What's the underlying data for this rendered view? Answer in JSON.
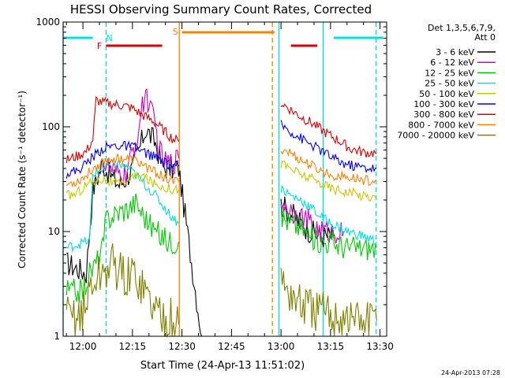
{
  "chart_data": {
    "type": "line",
    "title": "HESSI Observing Summary Count Rates, Corrected",
    "xlabel": "Start Time (24-Apr-13 11:51:02)",
    "ylabel": "Corrected Count Rate (s⁻¹ detector⁻¹)",
    "xlim_minutes": [
      -6,
      92
    ],
    "ylim": [
      1,
      1000
    ],
    "y_scale": "log",
    "x_ticks": [
      {
        "t": 0,
        "label": "12:00"
      },
      {
        "t": 15,
        "label": "12:15"
      },
      {
        "t": 30,
        "label": "12:30"
      },
      {
        "t": 45,
        "label": "12:45"
      },
      {
        "t": 60,
        "label": "13:00"
      },
      {
        "t": 75,
        "label": "13:15"
      },
      {
        "t": 90,
        "label": "13:30"
      }
    ],
    "y_ticks": [
      {
        "v": 1,
        "label": "1"
      },
      {
        "v": 10,
        "label": "10"
      },
      {
        "v": 100,
        "label": "100"
      },
      {
        "v": 1000,
        "label": "1000"
      }
    ],
    "legend_header": [
      "Det 1,3,5,6,7,9,",
      "Att 0"
    ],
    "legend_placement": "right",
    "series": [
      {
        "name": "3 - 6 keV",
        "color": "#000000",
        "points": [
          [
            -5,
            5
          ],
          [
            1,
            4
          ],
          [
            3,
            25
          ],
          [
            6,
            45
          ],
          [
            8,
            35
          ],
          [
            11,
            28
          ],
          [
            13,
            32
          ],
          [
            15,
            40
          ],
          [
            17,
            60
          ],
          [
            19,
            95
          ],
          [
            22,
            70
          ],
          [
            24,
            42
          ],
          [
            26,
            40
          ],
          [
            29,
            40
          ],
          [
            36,
            1
          ],
          [
            60,
            18
          ],
          [
            63,
            15
          ],
          [
            66,
            12
          ],
          [
            69,
            10
          ],
          [
            72,
            9
          ],
          [
            74,
            9
          ],
          [
            76,
            9
          ]
        ]
      },
      {
        "name": "6 - 12 keV",
        "color": "#d000d0",
        "points": [
          [
            6,
            45
          ],
          [
            10,
            35
          ],
          [
            13,
            35
          ],
          [
            16,
            70
          ],
          [
            18,
            150
          ],
          [
            19,
            220
          ],
          [
            20,
            160
          ],
          [
            22,
            100
          ],
          [
            23,
            60
          ],
          [
            25,
            45
          ],
          [
            27,
            45
          ],
          [
            29,
            50
          ],
          [
            60,
            20
          ],
          [
            63,
            16
          ],
          [
            66,
            14
          ],
          [
            69,
            12
          ],
          [
            72,
            10
          ],
          [
            75,
            10
          ],
          [
            79,
            10
          ]
        ]
      },
      {
        "name": "12 - 25 keV",
        "color": "#00cc00",
        "points": [
          [
            -5,
            2.7
          ],
          [
            0,
            2.7
          ],
          [
            2,
            4
          ],
          [
            4,
            5
          ],
          [
            6,
            7
          ],
          [
            7,
            13
          ],
          [
            10,
            15
          ],
          [
            14,
            17
          ],
          [
            16,
            19
          ],
          [
            18,
            15
          ],
          [
            20,
            12
          ],
          [
            22,
            10
          ],
          [
            24,
            9
          ],
          [
            26,
            8
          ],
          [
            29,
            8
          ],
          [
            60,
            14
          ],
          [
            63,
            12
          ],
          [
            66,
            11
          ],
          [
            69,
            9
          ],
          [
            72,
            8
          ],
          [
            75,
            8
          ],
          [
            80,
            7
          ],
          [
            85,
            7
          ],
          [
            89,
            7
          ]
        ]
      },
      {
        "name": "25 - 50 keV",
        "color": "#00e0e0",
        "points": [
          [
            -5,
            7
          ],
          [
            -2,
            7.5
          ],
          [
            1,
            8
          ],
          [
            2,
            8
          ],
          [
            3,
            35
          ],
          [
            6,
            40
          ],
          [
            10,
            45
          ],
          [
            14,
            40
          ],
          [
            18,
            30
          ],
          [
            22,
            22
          ],
          [
            26,
            15
          ],
          [
            29,
            12
          ],
          [
            60,
            26
          ],
          [
            63,
            22
          ],
          [
            66,
            20
          ],
          [
            69,
            17
          ],
          [
            72,
            14
          ],
          [
            75,
            12
          ],
          [
            80,
            10
          ],
          [
            85,
            9
          ],
          [
            89,
            8
          ]
        ]
      },
      {
        "name": "50 - 100 keV",
        "color": "#c8c800",
        "points": [
          [
            -5,
            22
          ],
          [
            -2,
            23
          ],
          [
            1,
            28
          ],
          [
            3,
            30
          ],
          [
            6,
            32
          ],
          [
            8,
            30
          ],
          [
            11,
            28
          ],
          [
            15,
            33
          ],
          [
            18,
            34
          ],
          [
            22,
            28
          ],
          [
            26,
            26
          ],
          [
            29,
            25
          ],
          [
            60,
            45
          ],
          [
            63,
            40
          ],
          [
            66,
            35
          ],
          [
            69,
            32
          ],
          [
            72,
            29
          ],
          [
            75,
            26
          ],
          [
            80,
            24
          ],
          [
            85,
            22
          ],
          [
            89,
            21
          ]
        ]
      },
      {
        "name": "100 - 300 keV",
        "color": "#0000ff",
        "points": [
          [
            -5,
            36
          ],
          [
            -2,
            38
          ],
          [
            0,
            42
          ],
          [
            3,
            52
          ],
          [
            6,
            62
          ],
          [
            9,
            66
          ],
          [
            12,
            66
          ],
          [
            15,
            64
          ],
          [
            18,
            58
          ],
          [
            21,
            53
          ],
          [
            24,
            46
          ],
          [
            27,
            42
          ],
          [
            29,
            42
          ],
          [
            60,
            105
          ],
          [
            63,
            90
          ],
          [
            66,
            78
          ],
          [
            69,
            68
          ],
          [
            72,
            60
          ],
          [
            75,
            52
          ],
          [
            78,
            46
          ],
          [
            81,
            43
          ],
          [
            85,
            41
          ],
          [
            89,
            40
          ]
        ]
      },
      {
        "name": "300 - 800 keV",
        "color": "#e00000",
        "points": [
          [
            -5,
            48
          ],
          [
            -2,
            52
          ],
          [
            1,
            58
          ],
          [
            3,
            75
          ],
          [
            4,
            180
          ],
          [
            6,
            170
          ],
          [
            9,
            165
          ],
          [
            12,
            160
          ],
          [
            15,
            150
          ],
          [
            18,
            130
          ],
          [
            21,
            115
          ],
          [
            24,
            95
          ],
          [
            27,
            78
          ],
          [
            29,
            72
          ],
          [
            60,
            170
          ],
          [
            63,
            145
          ],
          [
            66,
            125
          ],
          [
            69,
            110
          ],
          [
            72,
            95
          ],
          [
            75,
            82
          ],
          [
            78,
            72
          ],
          [
            81,
            62
          ],
          [
            85,
            57
          ],
          [
            89,
            56
          ]
        ]
      },
      {
        "name": "800 - 7000 keV",
        "color": "#ff8000",
        "points": [
          [
            -5,
            28
          ],
          [
            -2,
            30
          ],
          [
            1,
            34
          ],
          [
            3,
            40
          ],
          [
            6,
            46
          ],
          [
            9,
            50
          ],
          [
            12,
            50
          ],
          [
            15,
            48
          ],
          [
            18,
            44
          ],
          [
            21,
            38
          ],
          [
            24,
            34
          ],
          [
            27,
            30
          ],
          [
            29,
            30
          ],
          [
            60,
            62
          ],
          [
            63,
            56
          ],
          [
            66,
            48
          ],
          [
            69,
            43
          ],
          [
            72,
            38
          ],
          [
            75,
            35
          ],
          [
            80,
            33
          ],
          [
            85,
            31
          ],
          [
            89,
            31
          ]
        ]
      },
      {
        "name": "7000 - 20000 keV",
        "color": "#808000",
        "points": [
          [
            -5,
            1.5
          ],
          [
            -2,
            1.6
          ],
          [
            1,
            1.8
          ],
          [
            2,
            3
          ],
          [
            4,
            3.5
          ],
          [
            6,
            4
          ],
          [
            9,
            5
          ],
          [
            13,
            3.5
          ],
          [
            16,
            4
          ],
          [
            18,
            3
          ],
          [
            21,
            2
          ],
          [
            24,
            1.6
          ],
          [
            27,
            1.4
          ],
          [
            29,
            1.3
          ],
          [
            60,
            3.5
          ],
          [
            63,
            2.5
          ],
          [
            66,
            2
          ],
          [
            69,
            1.8
          ],
          [
            72,
            1.7
          ],
          [
            75,
            1.6
          ],
          [
            80,
            1.5
          ],
          [
            85,
            1.4
          ],
          [
            89,
            1.4
          ]
        ]
      }
    ],
    "timeline": {
      "bars": [
        {
          "label": "",
          "color": "#00e0e0",
          "t0": -6,
          "t1": 3
        },
        {
          "label": "",
          "color": "#00e0e0",
          "t0": 76,
          "t1": 91
        },
        {
          "label": "",
          "color": "#e00000",
          "t0": 7,
          "t1": 24
        },
        {
          "label": "",
          "color": "#e00000",
          "t0": 63,
          "t1": 71
        },
        {
          "label": "",
          "color": "#ff8000",
          "t0": 30,
          "t1": 58
        }
      ],
      "markers": [
        {
          "label": "F",
          "color": "#e00000",
          "t": 5
        },
        {
          "label": "N",
          "color": "#00e0e0",
          "t": 8
        },
        {
          "label": "S",
          "color": "#ff8000",
          "t": 28
        }
      ],
      "vlines": [
        {
          "t": -6,
          "color": "#00e0e0",
          "style": "solid"
        },
        {
          "t": 7,
          "color": "#00e0e0",
          "style": "dashed"
        },
        {
          "t": 29.2,
          "color": "#ff8000",
          "style": "solid"
        },
        {
          "t": 57.4,
          "color": "#ff8000",
          "style": "dashed"
        },
        {
          "t": 59.4,
          "color": "#00e0e0",
          "style": "solid"
        },
        {
          "t": 72.8,
          "color": "#00e0e0",
          "style": "solid"
        },
        {
          "t": 88.8,
          "color": "#00e0e0",
          "style": "dashed"
        }
      ]
    }
  },
  "footer_timestamp": "24-Apr-2013 07:28"
}
